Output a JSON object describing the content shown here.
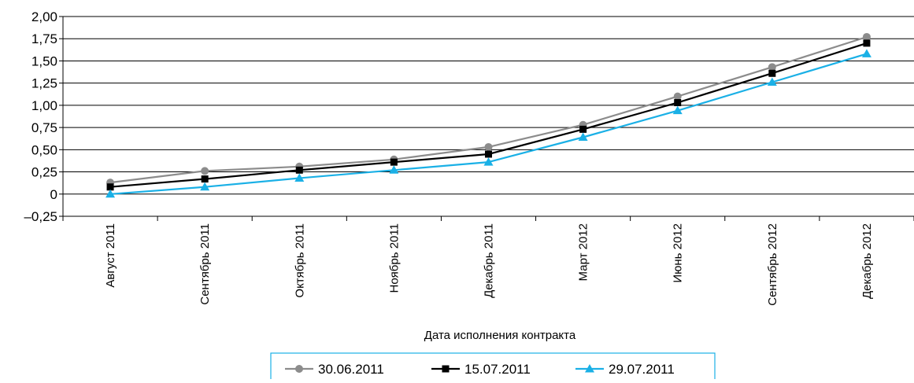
{
  "chart_data": {
    "type": "line",
    "title": "",
    "xlabel": "Дата исполнения контракта",
    "ylabel": "",
    "categories": [
      "Август 2011",
      "Сентябрь 2011",
      "Октябрь 2011",
      "Ноябрь 2011",
      "Декабрь 2011",
      "Март 2012",
      "Июнь 2012",
      "Сентябрь 2012",
      "Декабрь 2012"
    ],
    "ylim": [
      -0.25,
      2.0
    ],
    "yticks": [
      -0.25,
      0,
      0.25,
      0.5,
      0.75,
      1.0,
      1.25,
      1.5,
      1.75,
      2.0
    ],
    "ytick_labels": [
      "–0,25",
      "0",
      "0,25",
      "0,50",
      "0,75",
      "1,00",
      "1,25",
      "1,50",
      "1,75",
      "2,00"
    ],
    "grid": "horizontal",
    "legend_position": "bottom",
    "series": [
      {
        "name": "30.06.2011",
        "marker": "circle",
        "color": "#8c8c8c",
        "values": [
          0.13,
          0.26,
          0.31,
          0.39,
          0.53,
          0.78,
          1.1,
          1.43,
          1.77
        ]
      },
      {
        "name": "15.07.2011",
        "marker": "square",
        "color": "#000000",
        "values": [
          0.08,
          0.17,
          0.27,
          0.36,
          0.45,
          0.73,
          1.03,
          1.36,
          1.7
        ]
      },
      {
        "name": "29.07.2011",
        "marker": "triangle",
        "color": "#1ab0e6",
        "values": [
          0.0,
          0.08,
          0.18,
          0.27,
          0.36,
          0.64,
          0.94,
          1.26,
          1.58
        ]
      }
    ]
  }
}
